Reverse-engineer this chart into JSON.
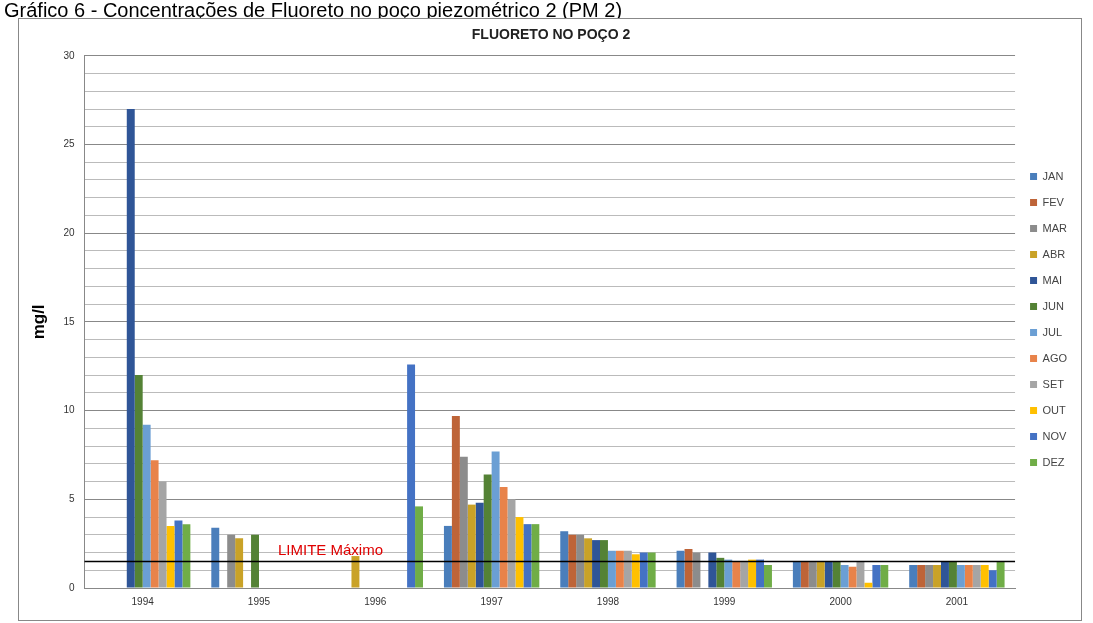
{
  "chart_data": {
    "type": "bar",
    "title": "FLUORETO NO POÇO 2",
    "ylabel": "mg/l",
    "annotations": [
      "Gráfico 6 - Concentrações de Fluoreto no poço piezométrico 2 (PM 2)"
    ],
    "categories": [
      "1994",
      "1995",
      "1996",
      "1997",
      "1998",
      "1999",
      "2000",
      "2001"
    ],
    "series": [
      {
        "name": "JAN",
        "color": "#4a7ebb",
        "values": [
          null,
          3.4,
          null,
          3.5,
          3.2,
          2.1,
          1.5,
          1.3
        ]
      },
      {
        "name": "FEV",
        "color": "#be6438",
        "values": [
          null,
          null,
          null,
          9.7,
          3.0,
          2.2,
          1.5,
          1.3
        ]
      },
      {
        "name": "MAR",
        "color": "#8c8c8c",
        "values": [
          null,
          3.0,
          null,
          7.4,
          3.0,
          2.0,
          1.5,
          1.3
        ]
      },
      {
        "name": "ABR",
        "color": "#c9a227",
        "values": [
          null,
          2.8,
          1.8,
          4.7,
          2.8,
          null,
          1.5,
          1.3
        ]
      },
      {
        "name": "MAI",
        "color": "#2f5597",
        "values": [
          27,
          null,
          null,
          4.8,
          2.7,
          2.0,
          1.5,
          1.5
        ]
      },
      {
        "name": "JUN",
        "color": "#548235",
        "values": [
          12,
          3.0,
          null,
          6.4,
          2.7,
          1.7,
          1.5,
          1.5
        ]
      },
      {
        "name": "JUL",
        "color": "#6b9fd4",
        "values": [
          9.2,
          null,
          null,
          7.7,
          2.1,
          1.6,
          1.3,
          1.3
        ]
      },
      {
        "name": "AGO",
        "color": "#e8834a",
        "values": [
          7.2,
          null,
          null,
          5.7,
          2.1,
          1.5,
          1.2,
          1.3
        ]
      },
      {
        "name": "SET",
        "color": "#a5a5a5",
        "values": [
          6.0,
          null,
          null,
          5.0,
          2.1,
          1.5,
          1.5,
          1.3
        ]
      },
      {
        "name": "OUT",
        "color": "#ffc000",
        "values": [
          3.5,
          null,
          null,
          4.0,
          1.9,
          1.6,
          0.3,
          1.3
        ]
      },
      {
        "name": "NOV",
        "color": "#4472c4",
        "values": [
          3.8,
          null,
          12.6,
          3.6,
          2.0,
          1.6,
          1.3,
          1.0
        ]
      },
      {
        "name": "DEZ",
        "color": "#70ad47",
        "values": [
          3.6,
          null,
          4.6,
          3.6,
          2.0,
          1.3,
          1.3,
          1.5
        ]
      }
    ],
    "ylim": [
      0,
      30
    ],
    "yticks": [
      0,
      {
        "value": 1,
        "label": null
      },
      {
        "value": 2,
        "label": null
      },
      {
        "value": 3,
        "label": null
      },
      {
        "value": 4,
        "label": null
      },
      5,
      {
        "value": 6,
        "label": null
      },
      {
        "value": 7,
        "label": null
      },
      {
        "value": 8,
        "label": null
      },
      {
        "value": 9,
        "label": null
      },
      10,
      {
        "value": 11,
        "label": null
      },
      {
        "value": 12,
        "label": null
      },
      {
        "value": 13,
        "label": null
      },
      {
        "value": 14,
        "label": null
      },
      15,
      {
        "value": 16,
        "label": null
      },
      {
        "value": 17,
        "label": null
      },
      {
        "value": 18,
        "label": null
      },
      {
        "value": 19,
        "label": null
      },
      20,
      {
        "value": 21,
        "label": null
      },
      {
        "value": 22,
        "label": null
      },
      {
        "value": 23,
        "label": null
      },
      {
        "value": 24,
        "label": null
      },
      25,
      {
        "value": 26,
        "label": null
      },
      {
        "value": 27,
        "label": null
      },
      {
        "value": 28,
        "label": null
      },
      {
        "value": 29,
        "label": null
      },
      30
    ],
    "ref_lines": [
      {
        "axis": "y",
        "value": 1.5,
        "label": "LIMITE Máximo",
        "color": "#000000"
      }
    ],
    "grid": "y",
    "legend": "right"
  }
}
